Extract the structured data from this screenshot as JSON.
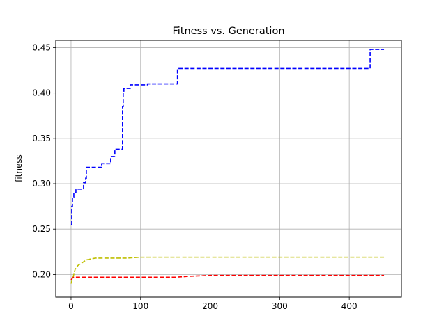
{
  "chart_data": {
    "type": "line",
    "title": "Fitness vs. Generation",
    "xlabel": "",
    "ylabel": "fitness",
    "xlim": [
      -22,
      475
    ],
    "ylim": [
      0.175,
      0.458
    ],
    "xticks": [
      0,
      100,
      200,
      300,
      400
    ],
    "xtick_labels": [
      "0",
      "100",
      "200",
      "300",
      "400"
    ],
    "yticks": [
      0.2,
      0.25,
      0.3,
      0.35,
      0.4,
      0.45
    ],
    "ytick_labels": [
      "0.20",
      "0.25",
      "0.30",
      "0.35",
      "0.40",
      "0.45"
    ],
    "grid": true,
    "series": [
      {
        "color": "#0000ff",
        "style": "dashed",
        "step": true,
        "x": [
          0,
          1,
          2,
          4,
          7,
          18,
          21,
          22,
          44,
          57,
          63,
          74,
          75,
          76,
          85,
          110,
          152,
          153,
          200,
          300,
          400,
          429,
          430,
          450
        ],
        "y": [
          0.255,
          0.275,
          0.285,
          0.29,
          0.294,
          0.301,
          0.306,
          0.318,
          0.322,
          0.33,
          0.338,
          0.385,
          0.4,
          0.405,
          0.409,
          0.41,
          0.41,
          0.427,
          0.427,
          0.427,
          0.427,
          0.427,
          0.448,
          0.448
        ]
      },
      {
        "color": "#bfbf00",
        "style": "dashed",
        "step": false,
        "x": [
          0,
          2,
          4,
          6,
          8,
          10,
          14,
          18,
          22,
          28,
          35,
          45,
          60,
          80,
          100,
          150,
          200,
          300,
          400,
          450
        ],
        "y": [
          0.19,
          0.195,
          0.2,
          0.206,
          0.208,
          0.21,
          0.212,
          0.214,
          0.216,
          0.217,
          0.218,
          0.218,
          0.218,
          0.218,
          0.219,
          0.219,
          0.219,
          0.219,
          0.219,
          0.219
        ]
      },
      {
        "color": "#ff0000",
        "style": "dashed",
        "step": false,
        "x": [
          0,
          2,
          4,
          6,
          10,
          20,
          50,
          100,
          150,
          170,
          200,
          250,
          300,
          400,
          450
        ],
        "y": [
          0.194,
          0.196,
          0.197,
          0.197,
          0.197,
          0.197,
          0.197,
          0.197,
          0.197,
          0.198,
          0.199,
          0.199,
          0.199,
          0.199,
          0.199
        ]
      }
    ]
  }
}
